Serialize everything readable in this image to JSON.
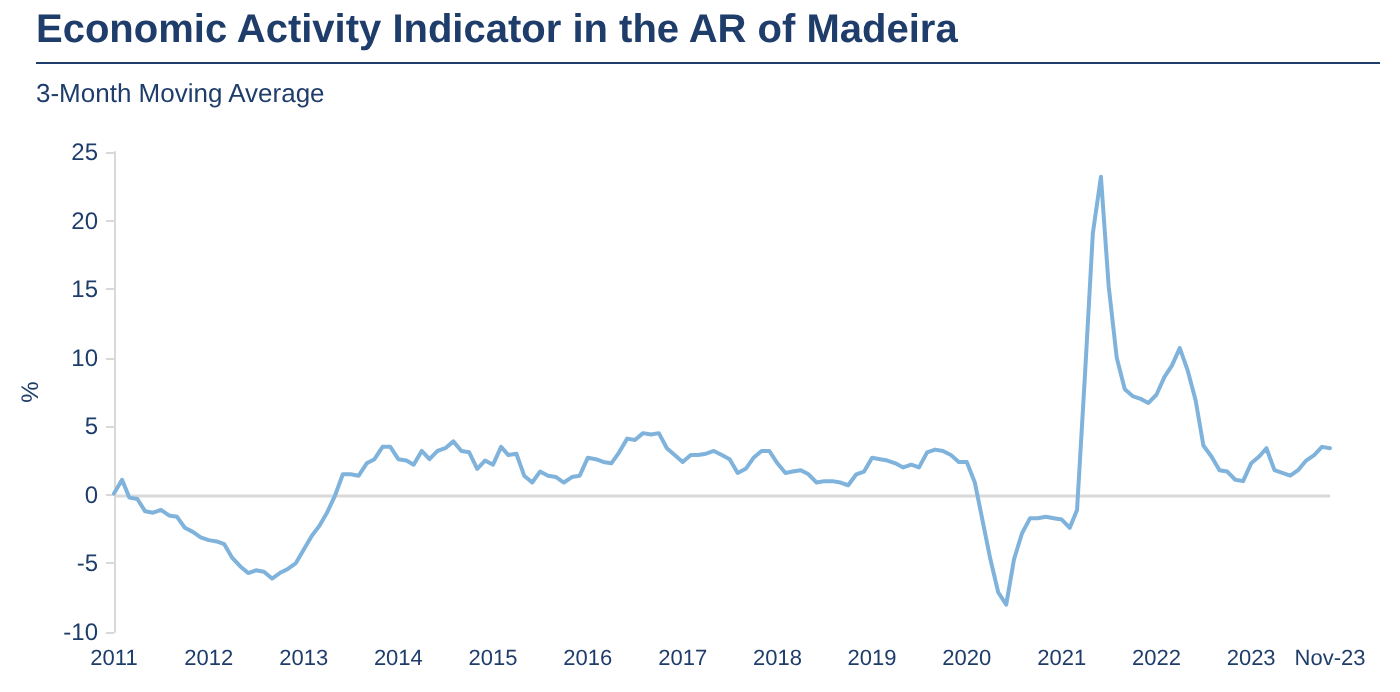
{
  "chart_data": {
    "type": "line",
    "title": "Economic Activity Indicator in the AR of Madeira",
    "subtitle": "3-Month Moving Average",
    "ylabel": "%",
    "x": [
      "2011-01",
      "2011-02",
      "2011-03",
      "2011-04",
      "2011-05",
      "2011-06",
      "2011-07",
      "2011-08",
      "2011-09",
      "2011-10",
      "2011-11",
      "2011-12",
      "2012-01",
      "2012-02",
      "2012-03",
      "2012-04",
      "2012-05",
      "2012-06",
      "2012-07",
      "2012-08",
      "2012-09",
      "2012-10",
      "2012-11",
      "2012-12",
      "2013-01",
      "2013-02",
      "2013-03",
      "2013-04",
      "2013-05",
      "2013-06",
      "2013-07",
      "2013-08",
      "2013-09",
      "2013-10",
      "2013-11",
      "2013-12",
      "2014-01",
      "2014-02",
      "2014-03",
      "2014-04",
      "2014-05",
      "2014-06",
      "2014-07",
      "2014-08",
      "2014-09",
      "2014-10",
      "2014-11",
      "2014-12",
      "2015-01",
      "2015-02",
      "2015-03",
      "2015-04",
      "2015-05",
      "2015-06",
      "2015-07",
      "2015-08",
      "2015-09",
      "2015-10",
      "2015-11",
      "2015-12",
      "2016-01",
      "2016-02",
      "2016-03",
      "2016-04",
      "2016-05",
      "2016-06",
      "2016-07",
      "2016-08",
      "2016-09",
      "2016-10",
      "2016-11",
      "2016-12",
      "2017-01",
      "2017-02",
      "2017-03",
      "2017-04",
      "2017-05",
      "2017-06",
      "2017-07",
      "2017-08",
      "2017-09",
      "2017-10",
      "2017-11",
      "2017-12",
      "2018-01",
      "2018-02",
      "2018-03",
      "2018-04",
      "2018-05",
      "2018-06",
      "2018-07",
      "2018-08",
      "2018-09",
      "2018-10",
      "2018-11",
      "2018-12",
      "2019-01",
      "2019-02",
      "2019-03",
      "2019-04",
      "2019-05",
      "2019-06",
      "2019-07",
      "2019-08",
      "2019-09",
      "2019-10",
      "2019-11",
      "2019-12",
      "2020-01",
      "2020-02",
      "2020-03",
      "2020-04",
      "2020-05",
      "2020-06",
      "2020-07",
      "2020-08",
      "2020-09",
      "2020-10",
      "2020-11",
      "2020-12",
      "2021-01",
      "2021-02",
      "2021-03",
      "2021-04",
      "2021-05",
      "2021-06",
      "2021-07",
      "2021-08",
      "2021-09",
      "2021-10",
      "2021-11",
      "2021-12",
      "2022-01",
      "2022-02",
      "2022-03",
      "2022-04",
      "2022-05",
      "2022-06",
      "2022-07",
      "2022-08",
      "2022-09",
      "2022-10",
      "2022-11",
      "2022-12",
      "2023-01",
      "2023-02",
      "2023-03",
      "2023-04",
      "2023-05",
      "2023-06",
      "2023-07",
      "2023-08",
      "2023-09",
      "2023-10",
      "2023-11"
    ],
    "values": [
      0.1,
      1.1,
      -0.2,
      -0.3,
      -1.2,
      -1.3,
      -1.1,
      -1.5,
      -1.6,
      -2.4,
      -2.7,
      -3.1,
      -3.3,
      -3.4,
      -3.6,
      -4.6,
      -5.2,
      -5.7,
      -5.5,
      -5.6,
      -6.1,
      -5.7,
      -5.4,
      -5.0,
      -4.0,
      -3.0,
      -2.3,
      -1.3,
      -0.1,
      1.5,
      1.5,
      1.4,
      2.3,
      2.6,
      3.5,
      3.5,
      2.6,
      2.5,
      2.2,
      3.2,
      2.6,
      3.2,
      3.4,
      3.9,
      3.2,
      3.1,
      1.9,
      2.5,
      2.2,
      3.5,
      2.9,
      3.0,
      1.4,
      0.9,
      1.7,
      1.4,
      1.3,
      0.9,
      1.3,
      1.4,
      2.7,
      2.6,
      2.4,
      2.3,
      3.1,
      4.1,
      4.0,
      4.5,
      4.4,
      4.5,
      3.4,
      2.9,
      2.4,
      2.9,
      2.9,
      3.0,
      3.2,
      2.9,
      2.6,
      1.6,
      1.9,
      2.7,
      3.2,
      3.2,
      2.3,
      1.6,
      1.7,
      1.8,
      1.5,
      0.9,
      1.0,
      1.0,
      0.9,
      0.7,
      1.5,
      1.7,
      2.7,
      2.6,
      2.5,
      2.3,
      2.0,
      2.2,
      2.0,
      3.1,
      3.3,
      3.2,
      2.9,
      2.4,
      2.4,
      0.9,
      -1.8,
      -4.7,
      -7.1,
      -8.0,
      -4.7,
      -2.8,
      -1.7,
      -1.7,
      -1.6,
      -1.7,
      -1.8,
      -2.4,
      -1.1,
      8.9,
      19.1,
      23.2,
      15.2,
      10.0,
      7.7,
      7.2,
      7.0,
      6.7,
      7.3,
      8.6,
      9.4,
      10.7,
      9.1,
      6.9,
      3.6,
      2.8,
      1.8,
      1.7,
      1.1,
      1.0,
      2.3,
      2.8,
      3.4,
      1.8,
      1.6,
      1.4,
      1.8,
      2.5,
      2.9,
      3.5,
      3.4
    ],
    "color": "#7fb3dc",
    "marker": "none",
    "line_style": "solid",
    "grid": false,
    "ylim": [
      -10,
      25
    ],
    "yticks": [
      -10,
      -5,
      0,
      5,
      10,
      15,
      20,
      25
    ],
    "xlim": [
      "2011-01",
      "2023-11"
    ],
    "xticks": [
      {
        "value": "2011-01",
        "label": "2011"
      },
      {
        "value": "2012-01",
        "label": "2012"
      },
      {
        "value": "2013-01",
        "label": "2013"
      },
      {
        "value": "2014-01",
        "label": "2014"
      },
      {
        "value": "2015-01",
        "label": "2015"
      },
      {
        "value": "2016-01",
        "label": "2016"
      },
      {
        "value": "2017-01",
        "label": "2017"
      },
      {
        "value": "2018-01",
        "label": "2018"
      },
      {
        "value": "2019-01",
        "label": "2019"
      },
      {
        "value": "2020-01",
        "label": "2020"
      },
      {
        "value": "2021-01",
        "label": "2021"
      },
      {
        "value": "2022-01",
        "label": "2022"
      },
      {
        "value": "2023-01",
        "label": "2023"
      },
      {
        "value": "2023-11",
        "label": "Nov-23"
      }
    ],
    "ref_lines": [
      {
        "axis": "y",
        "value": 0,
        "color": "#d9d9d9"
      }
    ]
  }
}
